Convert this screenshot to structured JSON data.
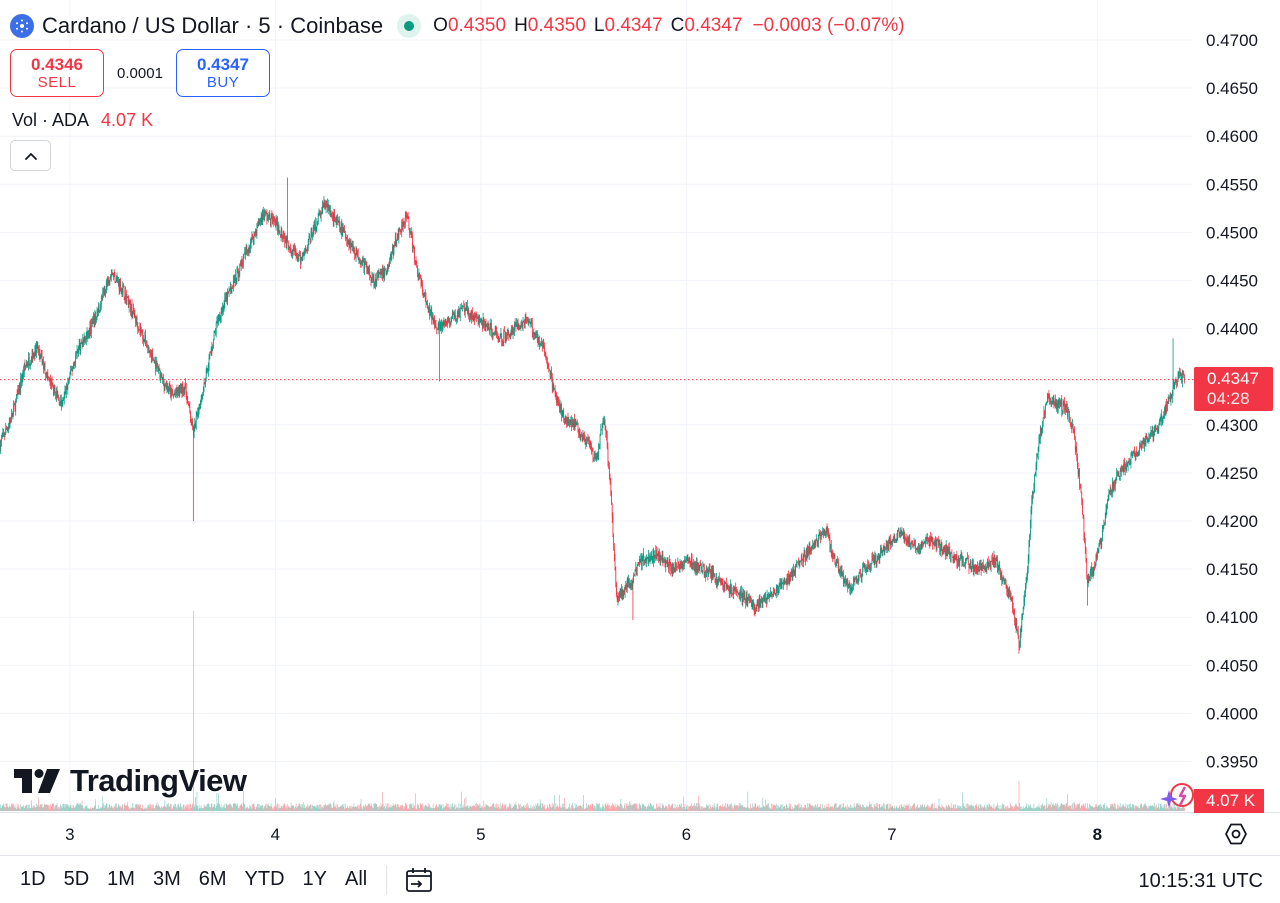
{
  "header": {
    "symbol_title": "Cardano / US Dollar · 5 · Coinbase",
    "ohlc": {
      "o_label": "O",
      "o_value": "0.4350",
      "h_label": "H",
      "h_value": "0.4350",
      "l_label": "L",
      "l_value": "0.4347",
      "c_label": "C",
      "c_value": "0.4347",
      "change": "−0.0003 (−0.07%)"
    }
  },
  "trade": {
    "sell_price": "0.4346",
    "sell_label": "SELL",
    "spread": "0.0001",
    "buy_price": "0.4347",
    "buy_label": "BUY"
  },
  "volume_legend": {
    "label": "Vol · ADA",
    "value": "4.07 K"
  },
  "price_tag": {
    "price": "0.4347",
    "countdown": "04:28"
  },
  "volume_tag": "4.07 K",
  "brand": "TradingView",
  "bottom_bar": {
    "ranges": [
      "1D",
      "5D",
      "1M",
      "3M",
      "6M",
      "YTD",
      "1Y",
      "All"
    ],
    "clock": "10:15:31 UTC"
  },
  "colors": {
    "up": "#089981",
    "down": "#f23645",
    "grid": "#f0f3fa",
    "accent_blue": "#2962ff"
  },
  "chart_data": {
    "type": "candlestick",
    "y_tick_labels": [
      "0.4700",
      "0.4650",
      "0.4600",
      "0.4550",
      "0.4500",
      "0.4450",
      "0.4400",
      "0.4350",
      "0.4300",
      "0.4250",
      "0.4200",
      "0.4150",
      "0.4100",
      "0.4050",
      "0.4000",
      "0.3950"
    ],
    "y_ticks": [
      0.47,
      0.465,
      0.46,
      0.455,
      0.45,
      0.445,
      0.44,
      0.435,
      0.43,
      0.425,
      0.42,
      0.415,
      0.41,
      0.405,
      0.4,
      0.395
    ],
    "ylim": [
      0.3915,
      0.4715
    ],
    "x_tick_labels": [
      "3",
      "4",
      "5",
      "6",
      "7",
      "8"
    ],
    "x_ticks": [
      3,
      4,
      5,
      6,
      7,
      8
    ],
    "xlim": [
      2.66,
      8.44
    ],
    "last_price": 0.4347,
    "grid": true,
    "series": [
      {
        "name": "",
        "x": [
          2.66,
          2.72,
          2.78,
          2.84,
          2.9,
          2.96,
          3.0,
          3.04,
          3.08,
          3.14,
          3.2,
          3.26,
          3.32,
          3.38,
          3.44,
          3.5,
          3.56,
          3.6,
          3.62,
          3.66,
          3.72,
          3.78,
          3.86,
          3.94,
          4.0,
          4.06,
          4.12,
          4.18,
          4.24,
          4.3,
          4.36,
          4.42,
          4.48,
          4.54,
          4.6,
          4.64,
          4.68,
          4.74,
          4.8,
          4.86,
          4.92,
          4.98,
          5.04,
          5.1,
          5.16,
          5.22,
          5.28,
          5.32,
          5.36,
          5.4,
          5.46,
          5.52,
          5.56,
          5.6,
          5.63,
          5.66,
          5.7,
          5.74,
          5.78,
          5.86,
          5.94,
          6.0,
          6.06,
          6.12,
          6.2,
          6.28,
          6.34,
          6.42,
          6.5,
          6.56,
          6.62,
          6.68,
          6.72,
          6.76,
          6.8,
          6.86,
          6.92,
          6.98,
          7.04,
          7.12,
          7.18,
          7.26,
          7.32,
          7.38,
          7.44,
          7.5,
          7.54,
          7.58,
          7.62,
          7.66,
          7.68,
          7.72,
          7.76,
          7.8,
          7.84,
          7.88,
          7.92,
          7.95,
          7.98,
          8.02,
          8.06,
          8.1,
          8.14,
          8.18,
          8.22,
          8.26,
          8.3,
          8.34,
          8.37,
          8.4,
          8.43
        ],
        "y": [
          0.428,
          0.431,
          0.436,
          0.438,
          0.4345,
          0.432,
          0.435,
          0.438,
          0.439,
          0.442,
          0.446,
          0.444,
          0.441,
          0.438,
          0.435,
          0.433,
          0.434,
          0.429,
          0.431,
          0.435,
          0.441,
          0.444,
          0.448,
          0.452,
          0.451,
          0.449,
          0.447,
          0.45,
          0.453,
          0.451,
          0.449,
          0.447,
          0.445,
          0.446,
          0.45,
          0.452,
          0.447,
          0.442,
          0.44,
          0.441,
          0.442,
          0.441,
          0.44,
          0.439,
          0.44,
          0.441,
          0.439,
          0.437,
          0.433,
          0.431,
          0.43,
          0.428,
          0.426,
          0.431,
          0.424,
          0.412,
          0.413,
          0.414,
          0.416,
          0.4165,
          0.415,
          0.416,
          0.415,
          0.4145,
          0.413,
          0.412,
          0.411,
          0.4125,
          0.414,
          0.416,
          0.4175,
          0.419,
          0.416,
          0.414,
          0.413,
          0.415,
          0.416,
          0.4175,
          0.419,
          0.417,
          0.418,
          0.417,
          0.416,
          0.4155,
          0.415,
          0.416,
          0.414,
          0.412,
          0.407,
          0.415,
          0.422,
          0.429,
          0.433,
          0.432,
          0.432,
          0.43,
          0.423,
          0.414,
          0.415,
          0.418,
          0.423,
          0.425,
          0.426,
          0.427,
          0.428,
          0.429,
          0.43,
          0.432,
          0.434,
          0.435,
          0.4347
        ]
      }
    ],
    "notable_wicks": [
      {
        "x": 3.6,
        "low": 0.42
      },
      {
        "x": 4.06,
        "high": 0.4557
      },
      {
        "x": 4.8,
        "low": 0.4345
      },
      {
        "x": 5.74,
        "low": 0.4097
      },
      {
        "x": 7.62,
        "low": 0.4062
      },
      {
        "x": 7.95,
        "low": 0.4112
      },
      {
        "x": 8.37,
        "high": 0.439
      }
    ],
    "volume_spikes": [
      {
        "x": 3.6,
        "relative": 1.0
      },
      {
        "x": 7.62,
        "relative": 0.15
      }
    ]
  }
}
